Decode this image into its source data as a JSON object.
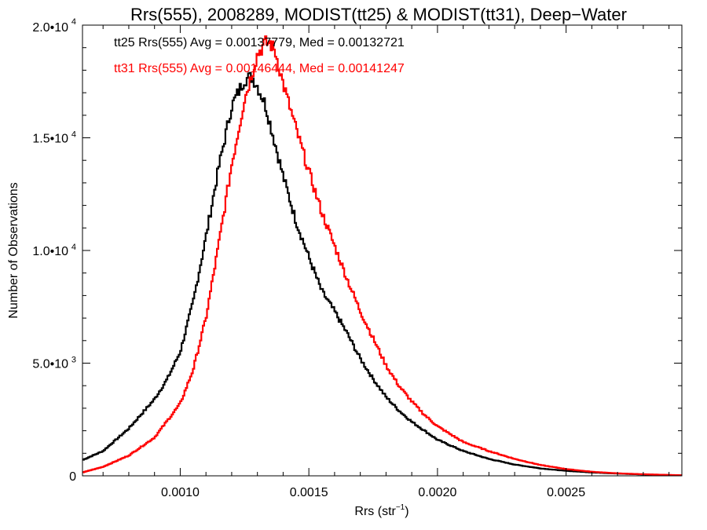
{
  "chart_data": {
    "type": "line",
    "title": "Rrs(555), 2008289, MODIST(tt25) & MODIST(tt31), Deep−Water",
    "xlabel_main": "Rrs (str",
    "xlabel_sup": "−1",
    "xlabel_end": ")",
    "ylabel": "Number of Observations",
    "xlim": [
      0.00062,
      0.00295
    ],
    "ylim": [
      0,
      20000
    ],
    "x_ticks": [
      {
        "value": 0.001,
        "label": "0.0010"
      },
      {
        "value": 0.0015,
        "label": "0.0015"
      },
      {
        "value": 0.002,
        "label": "0.0020"
      },
      {
        "value": 0.0025,
        "label": "0.0025"
      }
    ],
    "y_ticks": [
      {
        "value": 0,
        "label": "0",
        "sup": ""
      },
      {
        "value": 5000,
        "label": "5.0•10",
        "sup": "3"
      },
      {
        "value": 10000,
        "label": "1.0•10",
        "sup": "4"
      },
      {
        "value": 15000,
        "label": "1.5•10",
        "sup": "4"
      },
      {
        "value": 20000,
        "label": "2.0•10",
        "sup": "4"
      }
    ],
    "grid": false,
    "series": [
      {
        "color": "#000000",
        "annotation": "tt25 Rrs(555) Avg = 0.00137779, Med = 0.00132721",
        "x": [
          0.00062,
          0.0007,
          0.0008,
          0.0009,
          0.00095,
          0.001,
          0.00105,
          0.0011,
          0.00115,
          0.0012,
          0.00125,
          0.00128,
          0.0013,
          0.00133,
          0.00135,
          0.0014,
          0.00145,
          0.0015,
          0.00155,
          0.0016,
          0.00165,
          0.0017,
          0.00175,
          0.0018,
          0.00185,
          0.0019,
          0.00195,
          0.002,
          0.0021,
          0.0022,
          0.0023,
          0.0024,
          0.0025,
          0.0026,
          0.0027,
          0.0028,
          0.00295
        ],
        "values": [
          700,
          1100,
          2100,
          3400,
          4300,
          5500,
          7700,
          10600,
          13700,
          16400,
          17600,
          17700,
          17300,
          16500,
          15600,
          13300,
          11300,
          9700,
          8200,
          7300,
          6300,
          5200,
          4300,
          3500,
          2900,
          2400,
          2000,
          1600,
          1100,
          750,
          500,
          330,
          220,
          150,
          100,
          60,
          20
        ]
      },
      {
        "color": "#ff0000",
        "annotation": "tt31 Rrs(555) Avg = 0.00146444, Med = 0.00141247",
        "x": [
          0.00062,
          0.0007,
          0.0008,
          0.0009,
          0.001,
          0.00105,
          0.0011,
          0.00115,
          0.0012,
          0.00125,
          0.0013,
          0.00133,
          0.00135,
          0.00137,
          0.0014,
          0.00145,
          0.0015,
          0.00155,
          0.0016,
          0.00165,
          0.0017,
          0.00175,
          0.0018,
          0.00185,
          0.0019,
          0.00195,
          0.002,
          0.0021,
          0.0022,
          0.0023,
          0.0024,
          0.0025,
          0.0026,
          0.0027,
          0.0028,
          0.00295
        ],
        "values": [
          150,
          400,
          900,
          1700,
          3200,
          4700,
          7000,
          10300,
          13800,
          16700,
          18700,
          19200,
          19200,
          18800,
          17400,
          15400,
          13500,
          11700,
          10200,
          8700,
          7300,
          6100,
          4900,
          4000,
          3300,
          2700,
          2200,
          1500,
          1100,
          750,
          480,
          300,
          180,
          110,
          70,
          25
        ]
      }
    ]
  }
}
